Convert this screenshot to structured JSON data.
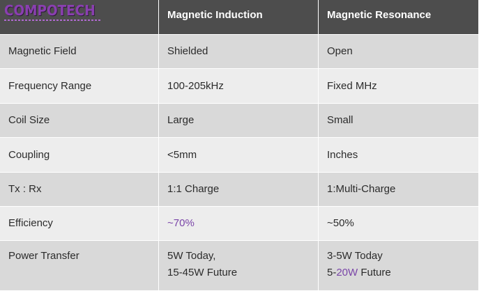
{
  "logo": {
    "text": "COMPOTECH"
  },
  "table": {
    "columns": [
      "Magnetic Induction",
      "Magnetic Resonance"
    ],
    "rows": [
      [
        "Magnetic Field",
        "Shielded",
        "Open"
      ],
      [
        "Frequency Range",
        "100-205kHz",
        "Fixed MHz"
      ],
      [
        "Coil Size",
        "Large",
        "Small"
      ],
      [
        "Coupling",
        "<5mm",
        "Inches"
      ],
      [
        "Tx : Rx",
        "1:1 Charge",
        "1:Multi-Charge"
      ],
      [
        "Efficiency",
        [
          [
            {
              "text": "~70%",
              "color": "#7a45a8"
            }
          ]
        ],
        "~50%"
      ],
      [
        "Power Transfer",
        [
          "5W Today,",
          "15-45W Future"
        ],
        [
          "3-5W Today",
          [
            "5-",
            {
              "text": "20W",
              "color": "#7a45a8"
            },
            " Future"
          ]
        ]
      ]
    ]
  }
}
